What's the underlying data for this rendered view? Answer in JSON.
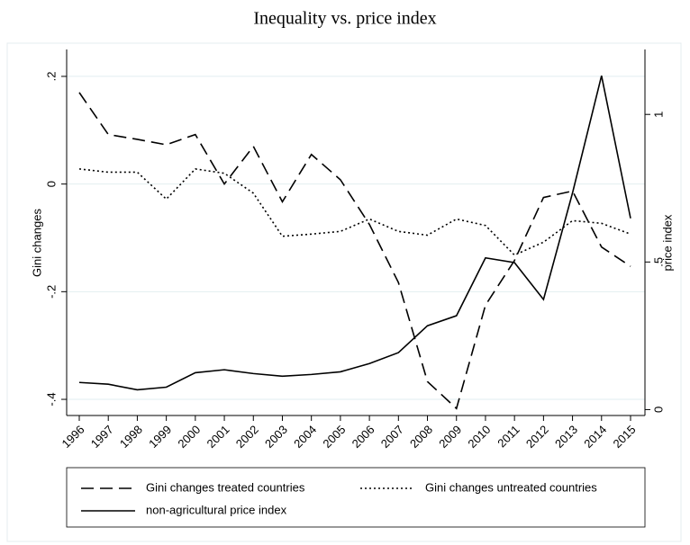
{
  "chart_data": {
    "type": "line",
    "title": "Inequality vs. price index",
    "ylabel": "Gini changes",
    "y2label": "price index",
    "categories": [
      "1996",
      "1997",
      "1998",
      "1999",
      "2000",
      "2001",
      "2002",
      "2003",
      "2004",
      "2005",
      "2006",
      "2007",
      "2008",
      "2009",
      "2010",
      "2011",
      "2012",
      "2013",
      "2014",
      "2015"
    ],
    "ylim": [
      -0.43,
      0.25
    ],
    "yticks": [
      {
        "value": -0.4,
        "label": "-.4"
      },
      {
        "value": -0.2,
        "label": "-.2"
      },
      0,
      {
        "value": 0.2,
        "label": ".2"
      }
    ],
    "y2lim": [
      -0.02,
      1.22
    ],
    "y2ticks": [
      0,
      {
        "value": 0.5,
        "label": ".5"
      },
      1
    ],
    "grid": true,
    "series": [
      {
        "name": "Gini changes treated countries",
        "color": "#000000",
        "dash": "long-dash",
        "values": [
          0.17,
          0.092,
          0.083,
          0.073,
          0.092,
          0.0,
          0.07,
          -0.033,
          0.055,
          0.008,
          -0.075,
          -0.183,
          -0.367,
          -0.417,
          -0.225,
          -0.142,
          -0.025,
          -0.013,
          -0.117,
          -0.153
        ]
      },
      {
        "name": "Gini changes untreated countries",
        "color": "#000000",
        "dash": "dotted",
        "values": [
          0.028,
          0.022,
          0.022,
          -0.028,
          0.028,
          0.02,
          -0.017,
          -0.097,
          -0.093,
          -0.088,
          -0.065,
          -0.088,
          -0.095,
          -0.065,
          -0.077,
          -0.132,
          -0.108,
          -0.068,
          -0.073,
          -0.093
        ]
      },
      {
        "name": "non-agricultural price index",
        "color": "#000000",
        "dash": "solid",
        "axis": "y2",
        "values": [
          0.092,
          0.086,
          0.067,
          0.076,
          0.125,
          0.135,
          0.122,
          0.113,
          0.119,
          0.128,
          0.156,
          0.193,
          0.284,
          0.318,
          0.514,
          0.498,
          0.373,
          0.734,
          1.131,
          0.648
        ]
      }
    ]
  }
}
